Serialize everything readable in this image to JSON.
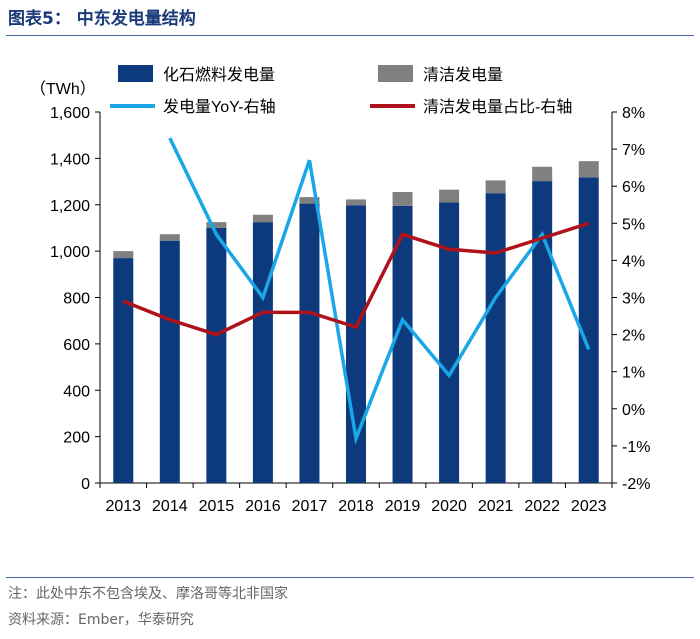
{
  "title": "图表5：  中东发电量结构",
  "footnotes": {
    "note": "注：此处中东不包含埃及、摩洛哥等北非国家",
    "source": "资料来源：Ember，华泰研究"
  },
  "chart_data": {
    "type": "bar",
    "categories": [
      "2013",
      "2014",
      "2015",
      "2016",
      "2017",
      "2018",
      "2019",
      "2020",
      "2021",
      "2022",
      "2023"
    ],
    "unit_label": "（TWh）",
    "ylim_left": [
      0,
      1600
    ],
    "yticks_left": [
      "0",
      "200",
      "400",
      "600",
      "800",
      "1,000",
      "1,200",
      "1,400",
      "1,600"
    ],
    "ylim_right": [
      -2,
      8
    ],
    "yticks_right": [
      "-2%",
      "-1%",
      "0%",
      "1%",
      "2%",
      "3%",
      "4%",
      "5%",
      "6%",
      "7%",
      "8%"
    ],
    "stacked": true,
    "series": [
      {
        "name": "化石燃料发电量",
        "kind": "bar",
        "axis": "left",
        "color": "#0d3a7d",
        "values": [
          970,
          1045,
          1100,
          1125,
          1205,
          1198,
          1195,
          1210,
          1250,
          1302,
          1318
        ]
      },
      {
        "name": "清洁发电量",
        "kind": "bar",
        "axis": "left",
        "color": "#808080",
        "values": [
          30,
          28,
          25,
          32,
          28,
          25,
          60,
          55,
          55,
          62,
          70
        ]
      },
      {
        "name": "发电量YoY-右轴",
        "kind": "line",
        "axis": "right",
        "color": "#1aa7e8",
        "values": [
          null,
          7.3,
          4.7,
          3.0,
          6.7,
          -0.8,
          2.4,
          0.9,
          3.0,
          4.7,
          1.6
        ]
      },
      {
        "name": "清洁发电量占比-右轴",
        "kind": "line",
        "axis": "right",
        "color": "#b0121b",
        "values": [
          2.9,
          2.4,
          2.0,
          2.6,
          2.6,
          2.2,
          4.7,
          4.3,
          4.2,
          4.6,
          5.0
        ]
      }
    ],
    "grid": false,
    "legend": "top"
  }
}
